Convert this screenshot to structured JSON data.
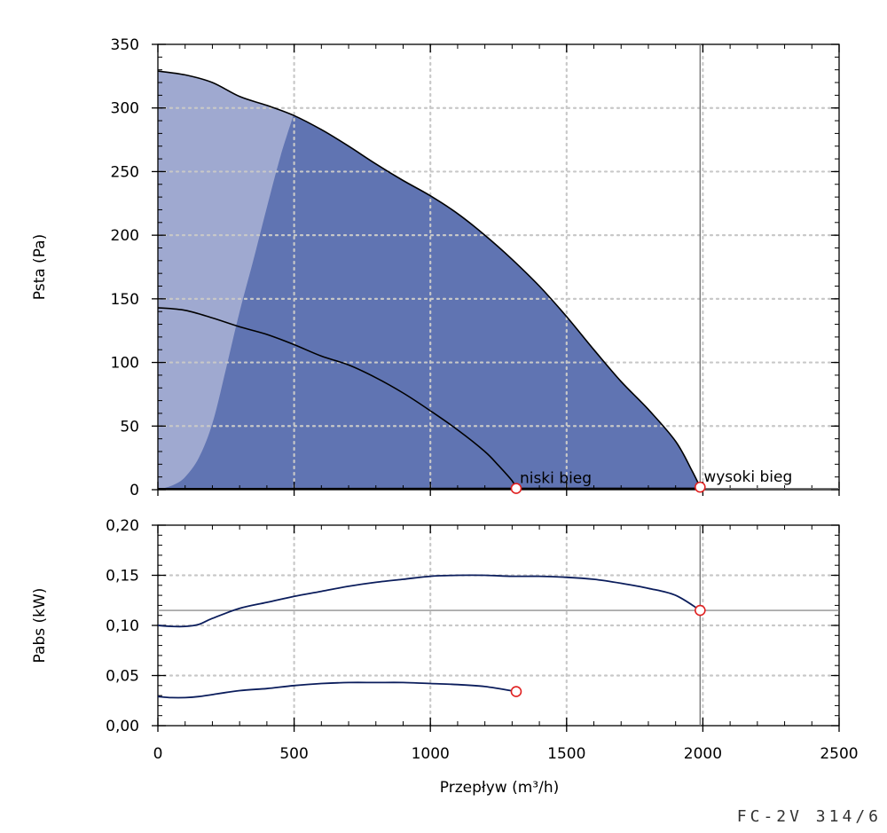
{
  "model": "FC-2V 314/6",
  "colors": {
    "region_dark": "#6074b2",
    "region_light": "#9fa9d0",
    "curve": "#000000",
    "power_curve": "#0b1d5c",
    "marker": "#e02020",
    "grid": "#c8c8c8",
    "reference_line": "#777777"
  },
  "chart_data": [
    {
      "type": "line",
      "id": "pressure",
      "xlabel": "Przepływ (m³/h)",
      "ylabel": "Psta (Pa)",
      "xlim": [
        0,
        2500
      ],
      "ylim": [
        0,
        350
      ],
      "xticks": [
        0,
        500,
        1000,
        1500,
        2000,
        2500
      ],
      "yticks": [
        0,
        50,
        100,
        150,
        200,
        250,
        300,
        350
      ],
      "ytick_labels": [
        "0",
        "50",
        "100",
        "150",
        "200",
        "250",
        "300",
        "350"
      ],
      "grid": true,
      "series": [
        {
          "role": "high-speed-curve",
          "x": [
            0,
            100,
            200,
            300,
            400,
            500,
            600,
            700,
            800,
            900,
            1000,
            1100,
            1200,
            1300,
            1400,
            1500,
            1600,
            1700,
            1800,
            1900,
            1960,
            1990
          ],
          "y": [
            329,
            326,
            320,
            309,
            302,
            294,
            283,
            270,
            256,
            243,
            231,
            217,
            200,
            181,
            160,
            136,
            110,
            85,
            63,
            38,
            15,
            2
          ]
        },
        {
          "role": "low-speed-curve",
          "x": [
            0,
            100,
            200,
            300,
            400,
            500,
            600,
            700,
            800,
            900,
            1000,
            1100,
            1200,
            1250,
            1300,
            1315
          ],
          "y": [
            143,
            141,
            135,
            128,
            122,
            114,
            105,
            98,
            88,
            76,
            62,
            47,
            30,
            19,
            7,
            1
          ]
        },
        {
          "role": "excluded-region-boundary",
          "x": [
            0,
            20,
            60,
            100,
            150,
            200,
            250,
            300,
            350,
            400,
            450,
            497
          ],
          "y": [
            0,
            1,
            4,
            10,
            25,
            52,
            95,
            140,
            180,
            222,
            262,
            294
          ]
        }
      ],
      "points": [
        {
          "label": "niski bieg",
          "x": 1315,
          "y": 1
        },
        {
          "label": "wysoki bieg",
          "x": 1990,
          "y": 2
        }
      ],
      "reference_lines": {
        "x": 1990,
        "y": 1
      }
    },
    {
      "type": "line",
      "id": "power",
      "xlabel": "Przepływ (m³/h)",
      "ylabel": "Pabs (kW)",
      "xlim": [
        0,
        2500
      ],
      "ylim": [
        0,
        0.2
      ],
      "xticks": [
        0,
        500,
        1000,
        1500,
        2000,
        2500
      ],
      "xtick_labels": [
        "0",
        "500",
        "1000",
        "1500",
        "2000",
        "2500"
      ],
      "yticks": [
        0,
        0.05,
        0.1,
        0.15,
        0.2
      ],
      "ytick_labels": [
        "0,00",
        "0,05",
        "0,10",
        "0,15",
        "0,20"
      ],
      "grid": true,
      "series": [
        {
          "role": "high-speed-power",
          "x": [
            0,
            50,
            100,
            150,
            200,
            300,
            400,
            500,
            600,
            700,
            800,
            900,
            1000,
            1100,
            1200,
            1300,
            1400,
            1500,
            1600,
            1700,
            1800,
            1900,
            1990
          ],
          "y": [
            0.1,
            0.099,
            0.099,
            0.101,
            0.107,
            0.117,
            0.123,
            0.129,
            0.134,
            0.139,
            0.143,
            0.146,
            0.149,
            0.15,
            0.15,
            0.149,
            0.149,
            0.148,
            0.146,
            0.142,
            0.137,
            0.13,
            0.115
          ]
        },
        {
          "role": "low-speed-power",
          "x": [
            0,
            50,
            100,
            150,
            200,
            300,
            400,
            500,
            600,
            700,
            800,
            900,
            1000,
            1100,
            1200,
            1315
          ],
          "y": [
            0.029,
            0.028,
            0.028,
            0.029,
            0.031,
            0.035,
            0.037,
            0.04,
            0.042,
            0.043,
            0.043,
            0.043,
            0.042,
            0.041,
            0.039,
            0.034
          ]
        }
      ],
      "points": [
        {
          "x": 1315,
          "y": 0.034
        },
        {
          "x": 1990,
          "y": 0.115
        }
      ],
      "reference_lines": {
        "x": 1990,
        "y": 0.115
      }
    }
  ]
}
